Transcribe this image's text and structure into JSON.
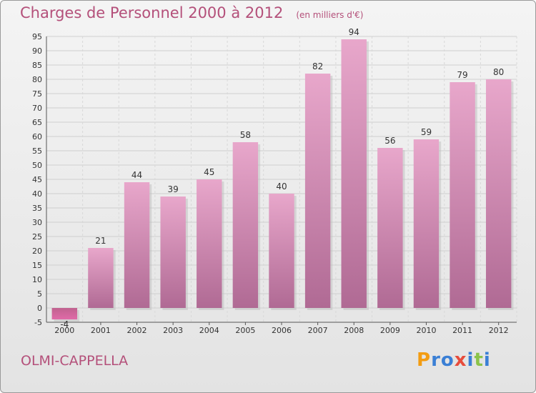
{
  "header": {
    "title": "Charges de Personnel 2000 à 2012",
    "subtitle": "(en milliers d'€)"
  },
  "footer": {
    "commune": "OLMI-CAPPELLA",
    "logo_letters": [
      {
        "char": "P",
        "color": "#f39c12"
      },
      {
        "char": "r",
        "color": "#3a7fd5"
      },
      {
        "char": "o",
        "color": "#3a7fd5"
      },
      {
        "char": "x",
        "color": "#e74c3c"
      },
      {
        "char": "i",
        "color": "#3a7fd5"
      },
      {
        "char": "t",
        "color": "#8bc34a"
      },
      {
        "char": "i",
        "color": "#3a7fd5"
      }
    ]
  },
  "colors": {
    "accent": "#b4507a",
    "bar_light": "#e8a7cb",
    "bar_dark": "#b06a94",
    "grid": "#cfcfcf"
  },
  "chart_data": {
    "type": "bar",
    "title": "Charges de Personnel 2000 à 2012",
    "subtitle": "(en milliers d'€)",
    "categories": [
      "2000",
      "2001",
      "2002",
      "2003",
      "2004",
      "2005",
      "2006",
      "2007",
      "2008",
      "2009",
      "2010",
      "2011",
      "2012"
    ],
    "values": [
      -4,
      21,
      44,
      39,
      45,
      58,
      40,
      82,
      94,
      56,
      59,
      79,
      80
    ],
    "ylim": [
      -5,
      95
    ],
    "yticks": [
      -5,
      0,
      5,
      10,
      15,
      20,
      25,
      30,
      35,
      40,
      45,
      50,
      55,
      60,
      65,
      70,
      75,
      80,
      85,
      90,
      95
    ],
    "grid": true,
    "xlabel": "",
    "ylabel": ""
  }
}
